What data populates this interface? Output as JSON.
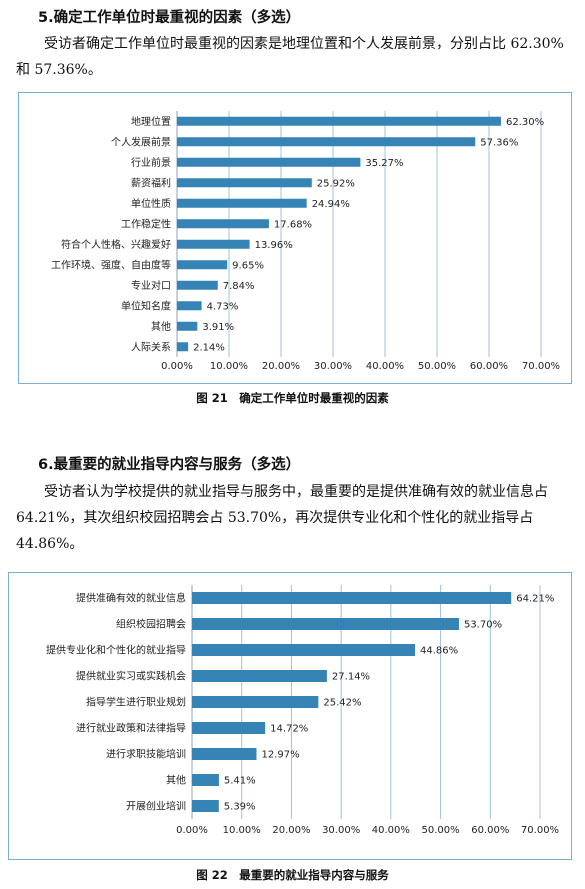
{
  "sections": [
    {
      "heading": "5.确定工作单位时最重视的因素（多选）",
      "paragraph": "受访者确定工作单位时最重视的因素是地理位置和个人发展前景，分别占比 62.30%和 57.36%。",
      "caption": "图 21　确定工作单位时最重视的因素"
    },
    {
      "heading": "6.最重要的就业指导内容与服务（多选）",
      "paragraph": "受访者认为学校提供的就业指导与服务中，最重要的是提供准确有效的就业信息占 64.21%，其次组织校园招聘会占 53.70%，再次提供专业化和个性化的就业指导占 44.86%。",
      "caption": "图 22　最重要的就业指导内容与服务"
    }
  ],
  "chart_data": [
    {
      "type": "bar",
      "orientation": "horizontal",
      "title": "",
      "xlabel": "",
      "ylabel": "",
      "categories": [
        "地理位置",
        "个人发展前景",
        "行业前景",
        "薪资福利",
        "单位性质",
        "工作稳定性",
        "符合个人性格、兴趣爱好",
        "工作环境、强度、自由度等",
        "专业对口",
        "单位知名度",
        "其他",
        "人际关系"
      ],
      "values": [
        62.3,
        57.36,
        35.27,
        25.92,
        24.94,
        17.68,
        13.96,
        9.65,
        7.84,
        4.73,
        3.91,
        2.14
      ],
      "value_labels": [
        "62.30%",
        "57.36%",
        "35.27%",
        "25.92%",
        "24.94%",
        "17.68%",
        "13.96%",
        "9.65%",
        "7.84%",
        "4.73%",
        "3.91%",
        "2.14%"
      ],
      "xlim": [
        0,
        70
      ],
      "tick_labels": [
        "0.00%",
        "10.00%",
        "20.00%",
        "30.00%",
        "40.00%",
        "50.00%",
        "60.00%",
        "70.00%"
      ],
      "grid": "vertical",
      "legend": "none",
      "bar_color": "#3584b5"
    },
    {
      "type": "bar",
      "orientation": "horizontal",
      "title": "",
      "xlabel": "",
      "ylabel": "",
      "categories": [
        "提供准确有效的就业信息",
        "组织校园招聘会",
        "提供专业化和个性化的就业指导",
        "提供就业实习或实践机会",
        "指导学生进行职业规划",
        "进行就业政策和法律指导",
        "进行求职技能培训",
        "其他",
        "开展创业培训"
      ],
      "values": [
        64.21,
        53.7,
        44.86,
        27.14,
        25.42,
        14.72,
        12.97,
        5.41,
        5.39
      ],
      "value_labels": [
        "64.21%",
        "53.70%",
        "44.86%",
        "27.14%",
        "25.42%",
        "14.72%",
        "12.97%",
        "5.41%",
        "5.39%"
      ],
      "xlim": [
        0,
        70
      ],
      "tick_labels": [
        "0.00%",
        "10.00%",
        "20.00%",
        "30.00%",
        "40.00%",
        "50.00%",
        "60.00%",
        "70.00%"
      ],
      "grid": "vertical",
      "legend": "none",
      "bar_color": "#3584b5"
    }
  ]
}
